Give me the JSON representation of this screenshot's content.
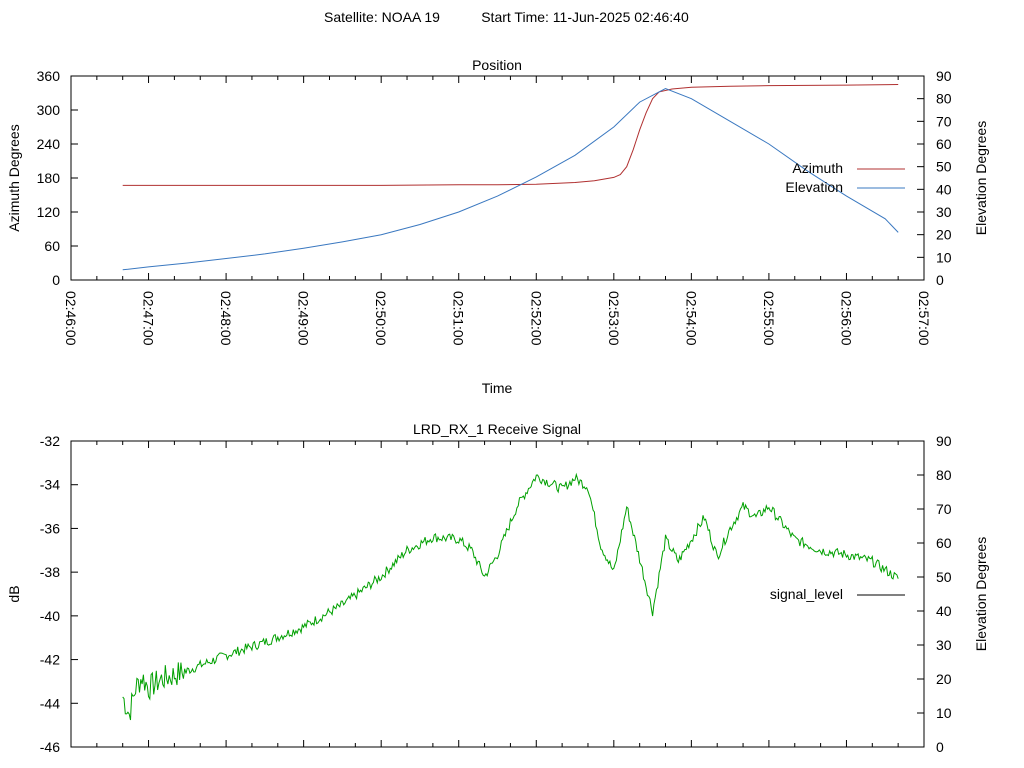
{
  "header": {
    "satellite": "Satellite: NOAA 19",
    "start_time": "Start Time: 11-Jun-2025 02:46:40"
  },
  "chart_data": [
    {
      "type": "line",
      "title": "Position",
      "xlabel": "Time",
      "ylabel": "Azimuth Degrees",
      "y2label": "Elevation Degrees",
      "xlim": [
        "02:46:00",
        "02:57:00"
      ],
      "ylim": [
        0,
        360
      ],
      "y2lim": [
        0,
        90
      ],
      "x_ticks": [
        "02:46:00",
        "02:47:00",
        "02:48:00",
        "02:49:00",
        "02:50:00",
        "02:51:00",
        "02:52:00",
        "02:53:00",
        "02:54:00",
        "02:55:00",
        "02:56:00",
        "02:57:00"
      ],
      "y_ticks": [
        0,
        60,
        120,
        180,
        240,
        300,
        360
      ],
      "y2_ticks": [
        0,
        10,
        20,
        30,
        40,
        50,
        60,
        70,
        80,
        90
      ],
      "grid": false,
      "legend": "right",
      "series": [
        {
          "name": "Azimuth",
          "axis": "y",
          "color": "#b03030",
          "x": [
            "02:46:40",
            "02:48:00",
            "02:49:00",
            "02:50:00",
            "02:51:00",
            "02:51:30",
            "02:52:00",
            "02:52:30",
            "02:52:45",
            "02:53:00",
            "02:53:05",
            "02:53:10",
            "02:53:15",
            "02:53:20",
            "02:53:25",
            "02:53:30",
            "02:53:35",
            "02:53:45",
            "02:54:00",
            "02:54:30",
            "02:55:00",
            "02:56:00",
            "02:56:40"
          ],
          "values": [
            167,
            167,
            167,
            167,
            168,
            168,
            169,
            172,
            175,
            181,
            186,
            200,
            230,
            265,
            295,
            320,
            332,
            337,
            340,
            342,
            343,
            344,
            345
          ]
        },
        {
          "name": "Elevation",
          "axis": "y2",
          "color": "#3a78c0",
          "x": [
            "02:46:40",
            "02:47:00",
            "02:47:30",
            "02:48:00",
            "02:48:30",
            "02:49:00",
            "02:49:30",
            "02:50:00",
            "02:50:30",
            "02:51:00",
            "02:51:30",
            "02:52:00",
            "02:52:30",
            "02:53:00",
            "02:53:20",
            "02:53:40",
            "02:54:00",
            "02:54:30",
            "02:55:00",
            "02:55:30",
            "02:56:00",
            "02:56:30",
            "02:56:40"
          ],
          "values": [
            4.5,
            5.8,
            7.5,
            9.5,
            11.5,
            14,
            16.8,
            20,
            24.5,
            30,
            37,
            45.5,
            55,
            67.5,
            78.5,
            84.5,
            80,
            70,
            60,
            48,
            37,
            27,
            21
          ]
        }
      ]
    },
    {
      "type": "line",
      "title": "LRD_RX_1 Receive Signal",
      "ylabel": "dB",
      "y2label": "Elevation Degrees",
      "xlim": [
        "02:46:00",
        "02:57:00"
      ],
      "ylim": [
        -46,
        -32
      ],
      "y2lim": [
        0,
        90
      ],
      "y_ticks": [
        -46,
        -44,
        -42,
        -40,
        -38,
        -36,
        -34,
        -32
      ],
      "y2_ticks": [
        0,
        10,
        20,
        30,
        40,
        50,
        60,
        70,
        80,
        90
      ],
      "grid": false,
      "legend": "right",
      "series": [
        {
          "name": "signal_level",
          "axis": "y",
          "color": "#00a000",
          "x": [
            "02:46:40",
            "02:46:45",
            "02:46:50",
            "02:46:55",
            "02:47:00",
            "02:47:10",
            "02:47:30",
            "02:48:00",
            "02:48:30",
            "02:49:00",
            "02:49:30",
            "02:50:00",
            "02:50:20",
            "02:50:40",
            "02:51:00",
            "02:51:10",
            "02:51:20",
            "02:51:30",
            "02:51:45",
            "02:52:00",
            "02:52:10",
            "02:52:20",
            "02:52:30",
            "02:52:40",
            "02:52:50",
            "02:53:00",
            "02:53:10",
            "02:53:20",
            "02:53:30",
            "02:53:40",
            "02:53:50",
            "02:54:00",
            "02:54:10",
            "02:54:20",
            "02:54:30",
            "02:54:40",
            "02:54:50",
            "02:55:00",
            "02:55:20",
            "02:55:40",
            "02:56:00",
            "02:56:20",
            "02:56:40"
          ],
          "values": [
            -43.7,
            -44.5,
            -43.3,
            -42.8,
            -43.3,
            -42.9,
            -42.5,
            -41.8,
            -41.2,
            -40.5,
            -39.5,
            -38.2,
            -37,
            -36.4,
            -36.5,
            -37,
            -38.2,
            -37.2,
            -35,
            -33.6,
            -33.9,
            -34.2,
            -33.7,
            -34.1,
            -36.8,
            -38,
            -35,
            -37.4,
            -39.8,
            -36.5,
            -37.5,
            -36.5,
            -35.5,
            -37.3,
            -36,
            -35,
            -35.5,
            -35,
            -36.5,
            -37,
            -37.2,
            -37.5,
            -38.3
          ]
        }
      ]
    }
  ]
}
